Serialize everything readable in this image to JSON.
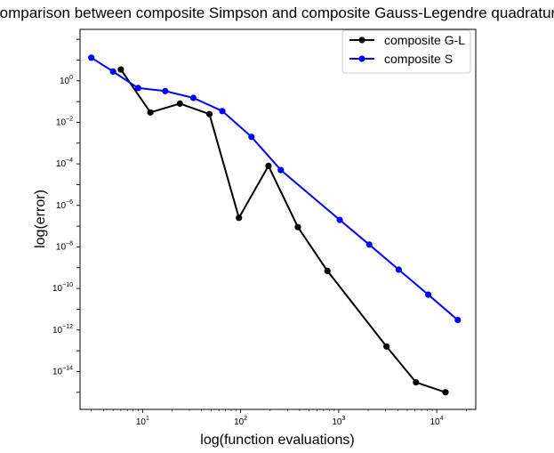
{
  "chart_data": {
    "type": "line",
    "title": "Comparison between composite Simpson and composite Gauss-Legendre quadrature",
    "xlabel": "log(function evaluations)",
    "ylabel": "log(error)",
    "xscale": "log",
    "yscale": "log",
    "xlim": [
      2.3,
      25000
    ],
    "ylim": [
      1.5e-16,
      300
    ],
    "grid": false,
    "legend_position": "top-right",
    "x_ticks": [
      {
        "value": 10,
        "base": "10",
        "exp": "1"
      },
      {
        "value": 100,
        "base": "10",
        "exp": "2"
      },
      {
        "value": 1000,
        "base": "10",
        "exp": "3"
      },
      {
        "value": 10000,
        "base": "10",
        "exp": "4"
      }
    ],
    "y_ticks": [
      {
        "value": 1,
        "base": "10",
        "exp": "0"
      },
      {
        "value": 0.01,
        "base": "10",
        "exp": "−2"
      },
      {
        "value": 0.0001,
        "base": "10",
        "exp": "−4"
      },
      {
        "value": 1e-06,
        "base": "10",
        "exp": "−6"
      },
      {
        "value": 1e-08,
        "base": "10",
        "exp": "−8"
      },
      {
        "value": 1e-10,
        "base": "10",
        "exp": "−10"
      },
      {
        "value": 1e-12,
        "base": "10",
        "exp": "−12"
      },
      {
        "value": 1e-14,
        "base": "10",
        "exp": "−14"
      }
    ],
    "series": [
      {
        "name": "composite G-L",
        "color": "#000000",
        "x": [
          6,
          12,
          24,
          48,
          96,
          192,
          384,
          768,
          3072,
          6144,
          12288
        ],
        "y": [
          3.5,
          0.03,
          0.08,
          0.025,
          2.5e-07,
          8e-05,
          9e-08,
          7e-10,
          1.6e-13,
          3e-15,
          1e-15
        ]
      },
      {
        "name": "composite S",
        "color": "#0000ff",
        "x": [
          3,
          5,
          9,
          17,
          33,
          65,
          129,
          257,
          1025,
          2049,
          4097,
          8193,
          16385
        ],
        "y": [
          13,
          2.8,
          0.45,
          0.32,
          0.15,
          0.035,
          0.002,
          5e-05,
          2e-07,
          1.3e-08,
          8e-10,
          5e-11,
          3e-12
        ]
      }
    ]
  }
}
